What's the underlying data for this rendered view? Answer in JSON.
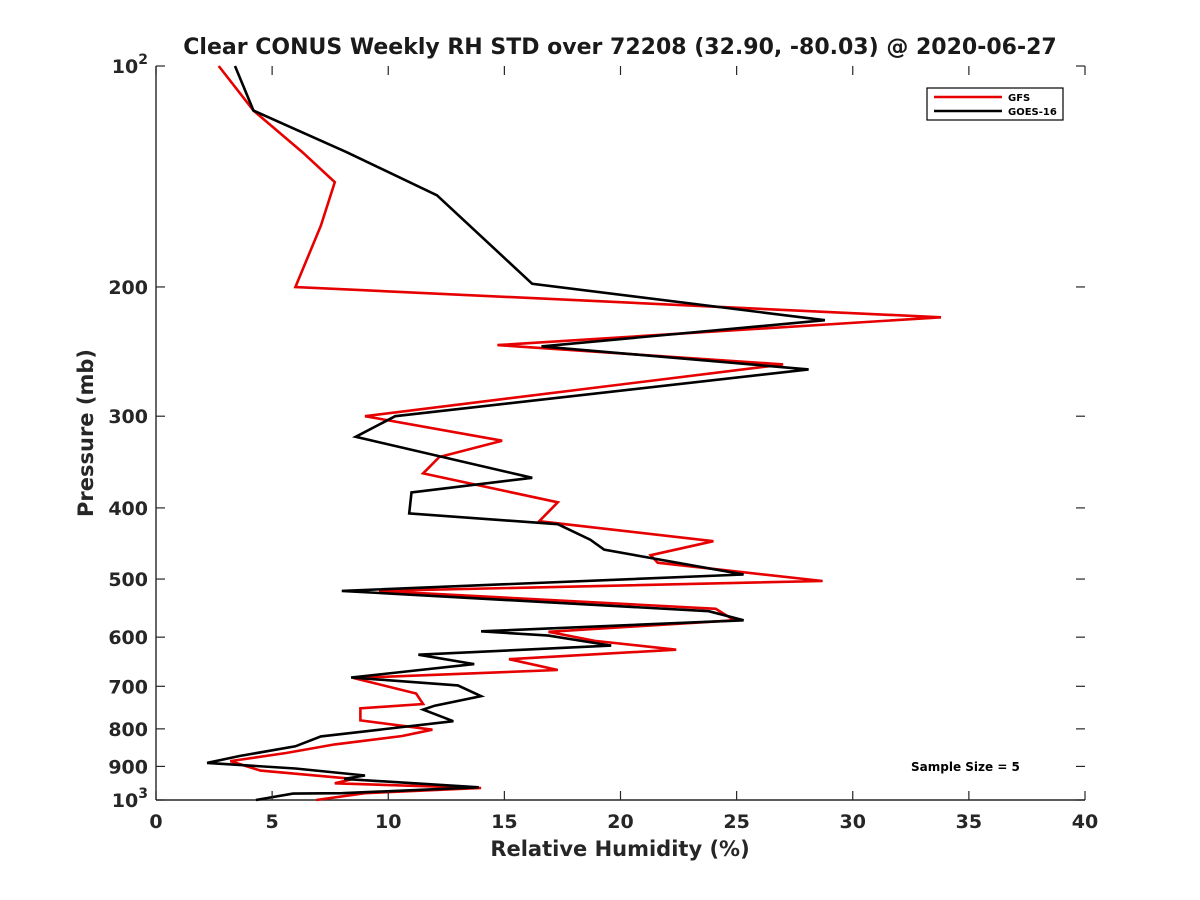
{
  "chart_data": {
    "type": "line",
    "title": "Clear CONUS Weekly RH STD over 72208 (32.90, -80.03) @ 2020-06-27",
    "xlabel": "Relative Humidity (%)",
    "ylabel": "Pressure (mb)",
    "xlim": [
      0,
      40
    ],
    "ylim": [
      100,
      1000
    ],
    "yscale": "log",
    "y_reversed": true,
    "grid": false,
    "legend_position": "top-right",
    "x_ticks": [
      {
        "value": 0,
        "label": "0"
      },
      {
        "value": 5,
        "label": "5"
      },
      {
        "value": 10,
        "label": "10"
      },
      {
        "value": 15,
        "label": "15"
      },
      {
        "value": 20,
        "label": "20"
      },
      {
        "value": 25,
        "label": "25"
      },
      {
        "value": 30,
        "label": "30"
      },
      {
        "value": 35,
        "label": "35"
      },
      {
        "value": 40,
        "label": "40"
      }
    ],
    "y_ticks": [
      {
        "value": 100,
        "base": "10",
        "exp": "2"
      },
      {
        "value": 200,
        "base": "200",
        "exp": ""
      },
      {
        "value": 300,
        "base": "300",
        "exp": ""
      },
      {
        "value": 400,
        "base": "400",
        "exp": ""
      },
      {
        "value": 500,
        "base": "500",
        "exp": ""
      },
      {
        "value": 600,
        "base": "600",
        "exp": ""
      },
      {
        "value": 700,
        "base": "700",
        "exp": ""
      },
      {
        "value": 800,
        "base": "800",
        "exp": ""
      },
      {
        "value": 900,
        "base": "900",
        "exp": ""
      },
      {
        "value": 1000,
        "base": "10",
        "exp": "3"
      }
    ],
    "annotation": "Sample Size = 5",
    "series": [
      {
        "name": "GFS",
        "color": "#e60000",
        "points": [
          [
            2.7,
            100
          ],
          [
            4.2,
            115
          ],
          [
            6.3,
            131
          ],
          [
            7.7,
            144
          ],
          [
            7.1,
            165
          ],
          [
            6.0,
            200
          ],
          [
            33.8,
            220
          ],
          [
            14.7,
            240
          ],
          [
            27.0,
            255
          ],
          [
            9.0,
            300
          ],
          [
            14.9,
            324
          ],
          [
            12.2,
            341
          ],
          [
            11.5,
            359
          ],
          [
            17.3,
            393
          ],
          [
            16.5,
            417
          ],
          [
            24.0,
            444
          ],
          [
            21.3,
            464
          ],
          [
            21.6,
            475
          ],
          [
            28.7,
            503
          ],
          [
            9.6,
            519
          ],
          [
            24.1,
            549
          ],
          [
            24.9,
            569
          ],
          [
            16.9,
            590
          ],
          [
            18.9,
            607
          ],
          [
            22.4,
            624
          ],
          [
            15.2,
            643
          ],
          [
            17.3,
            665
          ],
          [
            8.5,
            682
          ],
          [
            11.2,
            716
          ],
          [
            11.5,
            740
          ],
          [
            8.8,
            750
          ],
          [
            8.8,
            779
          ],
          [
            11.9,
            802
          ],
          [
            10.6,
            818
          ],
          [
            7.7,
            840
          ],
          [
            5.6,
            863
          ],
          [
            3.2,
            885
          ],
          [
            4.5,
            912
          ],
          [
            8.5,
            936
          ],
          [
            7.7,
            949
          ],
          [
            14.0,
            963
          ],
          [
            9.0,
            979
          ],
          [
            6.9,
            1000
          ]
        ]
      },
      {
        "name": "GOES-16",
        "color": "#000000",
        "points": [
          [
            3.4,
            100
          ],
          [
            4.2,
            115
          ],
          [
            8.2,
            131
          ],
          [
            12.1,
            150
          ],
          [
            16.2,
            198
          ],
          [
            28.8,
            222
          ],
          [
            16.6,
            241
          ],
          [
            28.1,
            259
          ],
          [
            10.3,
            300
          ],
          [
            8.6,
            320
          ],
          [
            16.2,
            364
          ],
          [
            11.0,
            381
          ],
          [
            10.9,
            407
          ],
          [
            17.3,
            421
          ],
          [
            18.7,
            442
          ],
          [
            19.3,
            456
          ],
          [
            25.3,
            493
          ],
          [
            8.0,
            519
          ],
          [
            23.8,
            553
          ],
          [
            25.3,
            569
          ],
          [
            14.0,
            589
          ],
          [
            16.9,
            597
          ],
          [
            19.6,
            616
          ],
          [
            11.3,
            634
          ],
          [
            13.7,
            653
          ],
          [
            8.4,
            681
          ],
          [
            13.0,
            698
          ],
          [
            14.0,
            722
          ],
          [
            12.0,
            744
          ],
          [
            11.5,
            753
          ],
          [
            12.8,
            781
          ],
          [
            7.1,
            819
          ],
          [
            6.0,
            845
          ],
          [
            3.6,
            871
          ],
          [
            2.2,
            890
          ],
          [
            6.0,
            906
          ],
          [
            9.0,
            926
          ],
          [
            8.1,
            936
          ],
          [
            13.9,
            961
          ],
          [
            8.0,
            979
          ],
          [
            5.9,
            980
          ],
          [
            4.3,
            1000
          ]
        ]
      }
    ]
  }
}
